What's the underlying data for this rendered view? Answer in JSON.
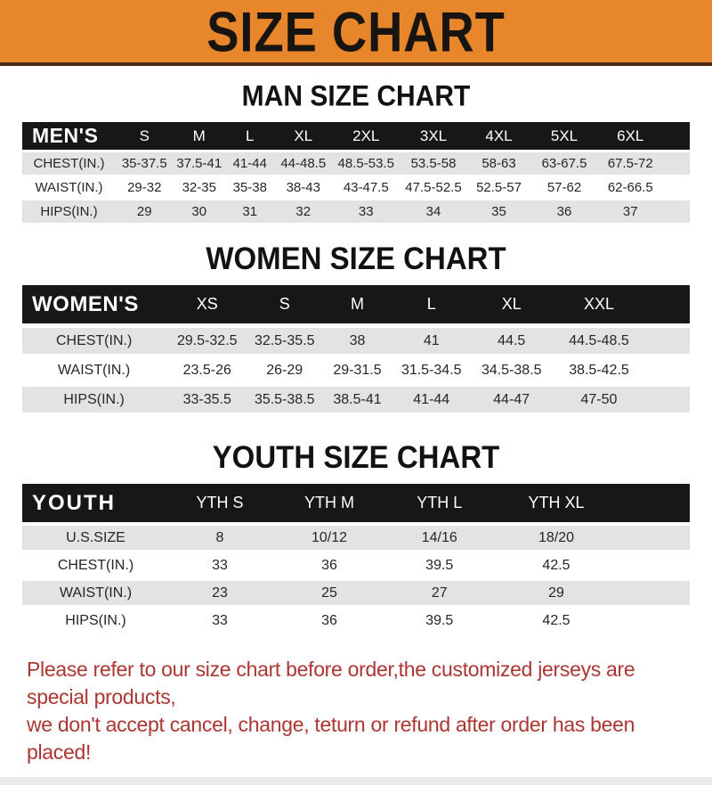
{
  "banner": {
    "title": "SIZE CHART",
    "bg_color": "#E8862B"
  },
  "men": {
    "heading": "MAN SIZE CHART",
    "corner": "MEN'S",
    "sizes": [
      "S",
      "M",
      "L",
      "XL",
      "2XL",
      "3XL",
      "4XL",
      "5XL",
      "6XL"
    ],
    "rows": [
      {
        "label": "CHEST(IN.)",
        "values": [
          "35-37.5",
          "37.5-41",
          "41-44",
          "44-48.5",
          "48.5-53.5",
          "53.5-58",
          "58-63",
          "63-67.5",
          "67.5-72"
        ]
      },
      {
        "label": "WAIST(IN.)",
        "values": [
          "29-32",
          "32-35",
          "35-38",
          "38-43",
          "43-47.5",
          "47.5-52.5",
          "52.5-57",
          "57-62",
          "62-66.5"
        ]
      },
      {
        "label": "HIPS(IN.)",
        "values": [
          "29",
          "30",
          "31",
          "32",
          "33",
          "34",
          "35",
          "36",
          "37"
        ]
      }
    ]
  },
  "women": {
    "heading": "WOMEN SIZE CHART",
    "corner": "WOMEN'S",
    "sizes": [
      "XS",
      "S",
      "M",
      "L",
      "XL",
      "XXL"
    ],
    "rows": [
      {
        "label": "CHEST(IN.)",
        "values": [
          "29.5-32.5",
          "32.5-35.5",
          "38",
          "41",
          "44.5",
          "44.5-48.5"
        ]
      },
      {
        "label": "WAIST(IN.)",
        "values": [
          "23.5-26",
          "26-29",
          "29-31.5",
          "31.5-34.5",
          "34.5-38.5",
          "38.5-42.5"
        ]
      },
      {
        "label": "HIPS(IN.)",
        "values": [
          "33-35.5",
          "35.5-38.5",
          "38.5-41",
          "41-44",
          "44-47",
          "47-50"
        ]
      }
    ]
  },
  "youth": {
    "heading": "YOUTH SIZE CHART",
    "corner": "YOUTH",
    "sizes": [
      "YTH S",
      "YTH M",
      "YTH L",
      "YTH XL"
    ],
    "rows": [
      {
        "label": "U.S.SIZE",
        "values": [
          "8",
          "10/12",
          "14/16",
          "18/20"
        ]
      },
      {
        "label": "CHEST(IN.)",
        "values": [
          "33",
          "36",
          "39.5",
          "42.5"
        ]
      },
      {
        "label": "WAIST(IN.)",
        "values": [
          "23",
          "25",
          "27",
          "29"
        ]
      },
      {
        "label": "HIPS(IN.)",
        "values": [
          "33",
          "36",
          "39.5",
          "42.5"
        ]
      }
    ]
  },
  "disclaimer": {
    "line1": "Please refer to our size chart before order,the customized jerseys are special products,",
    "line2": "we don't accept cancel, change, teturn or refund after order has been placed!",
    "color": "#AC3632"
  },
  "colors": {
    "banner_orange": "#E8862B",
    "banner_border": "#4E2A16",
    "header_black": "#171717",
    "row_gray": "#E4E3E1",
    "disclaimer_red": "#AC3632"
  }
}
